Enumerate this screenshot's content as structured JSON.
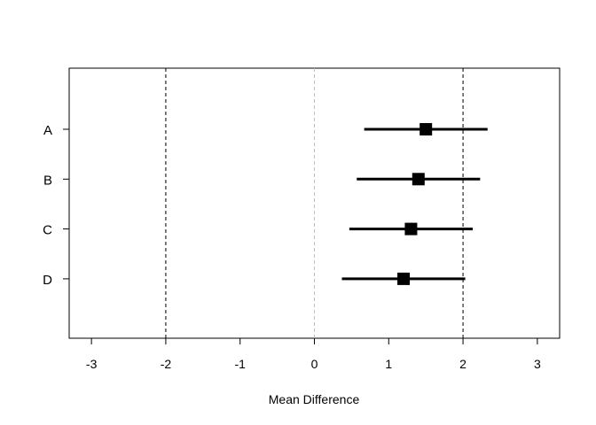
{
  "chart_data": {
    "type": "forest",
    "title": "",
    "xlabel": "Mean Difference",
    "ylabel": "",
    "xlim": [
      -3.3,
      3.3
    ],
    "x_ticks": [
      "-3",
      "-2",
      "-1",
      "0",
      "1",
      "2",
      "3"
    ],
    "x_tick_values": [
      -3,
      -2,
      -1,
      0,
      1,
      2,
      3
    ],
    "categories": [
      "A",
      "B",
      "C",
      "D"
    ],
    "estimates": [
      1.5,
      1.4,
      1.3,
      1.2
    ],
    "ci_lower": [
      0.67,
      0.57,
      0.47,
      0.37
    ],
    "ci_upper": [
      2.33,
      2.23,
      2.13,
      2.03
    ],
    "reference_lines": [
      {
        "x": -2,
        "style": "dashed",
        "color": "#000000"
      },
      {
        "x": 0,
        "style": "dashed",
        "color": "#bebebe"
      },
      {
        "x": 2,
        "style": "dashed",
        "color": "#000000"
      }
    ],
    "grid": false
  }
}
